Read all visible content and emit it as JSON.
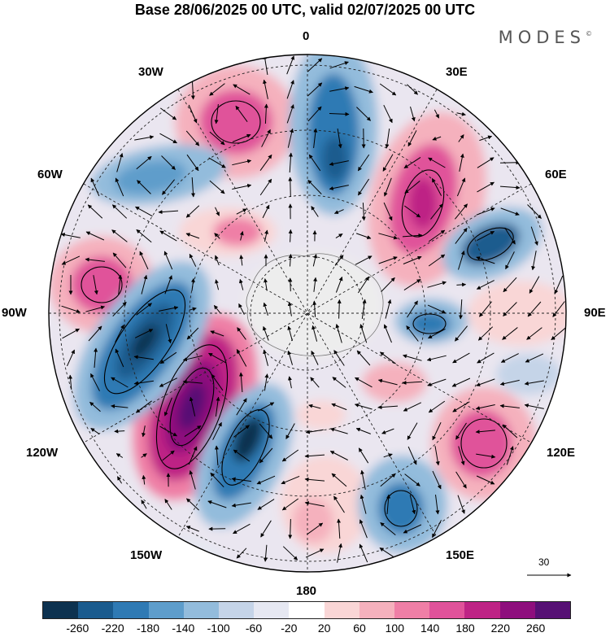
{
  "title": "Base 28/06/2025 00 UTC, valid 02/07/2025 00 UTC",
  "brand": "MODES",
  "brand_mark": "©",
  "map": {
    "projection": "south-polar-stereographic",
    "lon_labels": {
      "top": "0",
      "bottom": "180",
      "left": "90W",
      "right": "90E",
      "upper_left_1": "30W",
      "upper_left_2": "60W",
      "upper_right_1": "30E",
      "upper_right_2": "60E",
      "lower_left_1": "120W",
      "lower_left_2": "150W",
      "lower_right_1": "120E",
      "lower_right_2": "150E"
    }
  },
  "vector_scale": {
    "value": "30"
  },
  "colorbar": {
    "colors": [
      "#0d3250",
      "#1a5b8e",
      "#2f7ab4",
      "#5e9dcb",
      "#93bcdc",
      "#c5d4e8",
      "#e6e8f2",
      "#ffffff",
      "#f9d6d6",
      "#f5b1bd",
      "#ef7fa6",
      "#e0529a",
      "#be2385",
      "#8e0e7d",
      "#561074"
    ],
    "ticks": [
      "-260",
      "-220",
      "-180",
      "-140",
      "-100",
      "-60",
      "-20",
      "20",
      "60",
      "100",
      "140",
      "180",
      "220",
      "260"
    ]
  }
}
